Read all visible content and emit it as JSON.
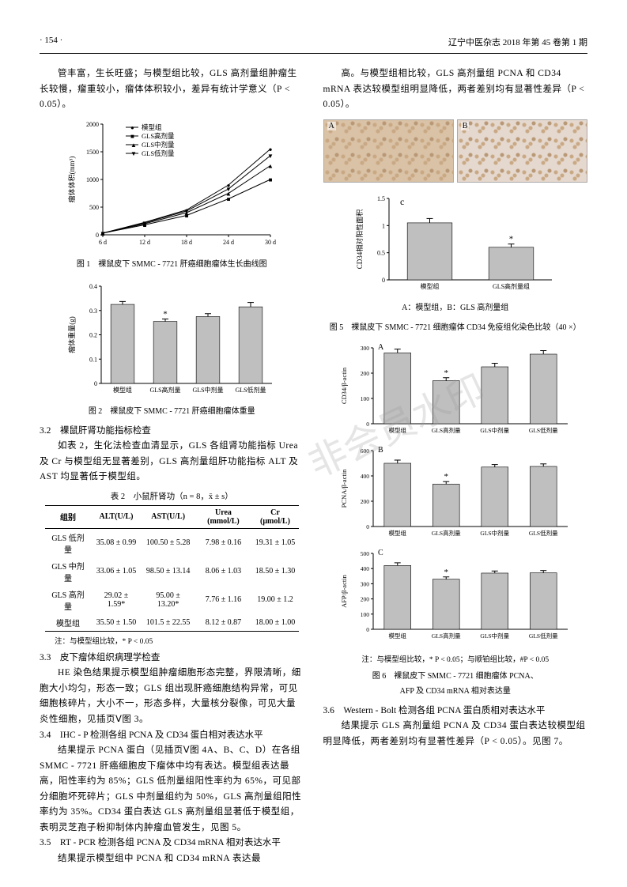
{
  "header": {
    "page_num": "· 154 ·",
    "journal": "辽宁中医杂志 2018 年第 45 卷第 1 期"
  },
  "left": {
    "intro": "管丰富，生长旺盛；与模型组比较，GLS 高剂量组肿瘤生长较慢，瘤重较小，瘤体体积较小，差异有统计学意义（P < 0.05）。",
    "fig1_caption": "图 1　裸鼠皮下 SMMC - 7721 肝癌细胞瘤体生长曲线图",
    "fig2_caption": "图 2　裸鼠皮下 SMMC - 7721 肝癌细胞瘤体重量",
    "sec32_title": "3.2　裸鼠肝肾功能指标检查",
    "sec32_body": "如表 2，生化法检查血清显示，GLS 各组肾功能指标 Urea 及 Cr 与模型组无显著差别，GLS 高剂量组肝功能指标 ALT 及 AST 均显著低于模型组。",
    "tbl2_title": "表 2　小鼠肝肾功（n = 8，x̄ ± s）",
    "tbl2": {
      "headers": [
        "组别",
        "ALT(U/L)",
        "AST(U/L)",
        "Urea (mmol/L)",
        "Cr (μmol/L)"
      ],
      "rows": [
        [
          "GLS 低剂量",
          "35.08 ± 0.99",
          "100.50 ± 5.28",
          "7.98 ± 0.16",
          "19.31 ± 1.05"
        ],
        [
          "GLS 中剂量",
          "33.06 ± 1.05",
          "98.50 ± 13.14",
          "8.06 ± 1.03",
          "18.50 ± 1.30"
        ],
        [
          "GLS 高剂量",
          "29.02 ± 1.59*",
          "95.00 ± 13.20*",
          "7.76 ± 1.16",
          "19.00 ± 1.2"
        ],
        [
          "模型组",
          "35.50 ± 1.50",
          "101.5 ± 22.55",
          "8.12 ± 0.87",
          "18.00 ± 1.00"
        ]
      ]
    },
    "tbl2_note": "注：与模型组比较，* P < 0.05",
    "sec33_title": "3.3　皮下瘤体组织病理学检查",
    "sec33_body": "HE 染色结果提示模型组肿瘤细胞形态完整，界限清晰，细胞大小均匀，形态一致；GLS 组出现肝癌细胞结构异常，可见细胞核碎片，大小不一，形态多样，大量核分裂像，可见大量炎性细胞，见插页Ⅴ图 3。",
    "sec34_title": "3.4　IHC - P 检测各组 PCNA 及 CD34 蛋白相对表达水平",
    "sec34_body": "结果提示 PCNA 蛋白（见插页Ⅴ图 4A、B、C、D）在各组 SMMC - 7721 肝癌细胞皮下瘤体中均有表达。模型组表达最高，阳性率约为 85%；GLS 低剂量组阳性率约为 65%，可见部分细胞坏死碎片；GLS 中剂量组约为 50%，GLS 高剂量组阳性率约为 35%。CD34 蛋白表达 GLS 高剂量组显著低于模型组，表明灵芝孢子粉抑制体内肿瘤血管发生，见图 5。",
    "sec35_title": "3.5　RT - PCR 检测各组 PCNA 及 CD34 mRNA 相对表达水平",
    "sec35_body": "结果提示模型组中 PCNA 和 CD34 mRNA 表达最"
  },
  "right": {
    "top": "高。与模型组相比较，GLS 高剂量组 PCNA 和 CD34 mRNA 表达较模型组明显降低，两者差别均有显著性差异（P < 0.05）。",
    "fig5_sub": "A：模型组，B：GLS 高剂量组",
    "fig5_caption": "图 5　裸鼠皮下 SMMC - 7721 细胞瘤体 CD34 免疫组化染色比较（40 ×）",
    "fig6_note": "注：与模型组比较，* P < 0.05；与顺铂组比较，#P < 0.05",
    "fig6_caption1": "图 6　裸鼠皮下 SMMC - 7721 细胞瘤体 PCNA、",
    "fig6_caption2": "AFP 及 CD34 mRNA 相对表达量",
    "sec36_title": "3.6　Western - Bolt 检测各组 PCNA 蛋白质相对表达水平",
    "sec36_body": "结果提示 GLS 高剂量组 PCNA 及 CD34 蛋白表达较模型组明显降低，两者差别均有显著性差异（P < 0.05）。见图 7。"
  },
  "fig1": {
    "type": "line",
    "x": [
      6,
      12,
      18,
      24,
      30
    ],
    "x_labels": [
      "6 d",
      "12 d",
      "18 d",
      "24 d",
      "30 d"
    ],
    "ylabel": "瘤体体积(mm³)",
    "ylim": [
      0,
      2000
    ],
    "ytick": [
      0,
      500,
      1000,
      1500,
      2000
    ],
    "series": [
      {
        "name": "模型组",
        "marker": "●",
        "color": "#000000",
        "y": [
          30,
          225,
          450,
          900,
          1550
        ]
      },
      {
        "name": "GLS高剂量",
        "marker": "■",
        "color": "#000000",
        "y": [
          30,
          180,
          350,
          650,
          1000
        ]
      },
      {
        "name": "GLS中剂量",
        "marker": "▲",
        "color": "#000000",
        "y": [
          30,
          200,
          400,
          750,
          1250
        ]
      },
      {
        "name": "GLS低剂量",
        "marker": "▼",
        "color": "#000000",
        "y": [
          30,
          215,
          430,
          830,
          1430
        ]
      }
    ],
    "bg": "#ffffff",
    "axis_color": "#000000",
    "grid": false
  },
  "fig2": {
    "type": "bar",
    "ylabel": "瘤体重量(g)",
    "ylim": [
      0,
      0.4
    ],
    "ytick": [
      0,
      0.1,
      0.2,
      0.3,
      0.4
    ],
    "categories": [
      "模型组",
      "GLS高剂量",
      "GLS中剂量",
      "GLS低剂量"
    ],
    "values": [
      0.325,
      0.255,
      0.275,
      0.315
    ],
    "errors": [
      0.012,
      0.01,
      0.012,
      0.018
    ],
    "star_idx": [
      1
    ],
    "bar_color": "#bfbfbf",
    "edge": "#000000",
    "bg": "#ffffff"
  },
  "fig5c": {
    "type": "bar",
    "ylabel": "CD34相对阳性面积",
    "ylim": [
      0,
      1.5
    ],
    "ytick": [
      0,
      0.5,
      1.0,
      1.5
    ],
    "categories": [
      "模型组",
      "GLS高剂量组"
    ],
    "values": [
      1.05,
      0.6
    ],
    "errors": [
      0.08,
      0.06
    ],
    "star_idx": [
      1
    ],
    "bar_color": "#bfbfbf",
    "edge": "#000000",
    "panel_label": "c"
  },
  "fig6": {
    "type": "bar_panels",
    "categories": [
      "模型组",
      "GLS高剂量",
      "GLS中剂量",
      "GLS低剂量"
    ],
    "panels": [
      {
        "label": "A",
        "ylabel": "CD34/β-actin",
        "ylim": [
          0,
          300
        ],
        "ytick": [
          0,
          100,
          200,
          300
        ],
        "values": [
          280,
          170,
          225,
          275
        ],
        "errors": [
          15,
          12,
          14,
          14
        ],
        "star_idx": [
          1
        ]
      },
      {
        "label": "B",
        "ylabel": "PCNA/β-actin",
        "ylim": [
          0,
          600
        ],
        "ytick": [
          0,
          200,
          400,
          600
        ],
        "values": [
          500,
          335,
          470,
          475
        ],
        "errors": [
          25,
          20,
          20,
          20
        ],
        "star_idx": [
          1
        ]
      },
      {
        "label": "C",
        "ylabel": "AFP/β-actin",
        "ylim": [
          0,
          500
        ],
        "ytick": [
          0,
          100,
          200,
          300,
          400,
          500
        ],
        "values": [
          420,
          330,
          370,
          372
        ],
        "errors": [
          18,
          15,
          14,
          15
        ],
        "star_idx": [
          1
        ]
      }
    ],
    "bar_color": "#bfbfbf",
    "edge": "#000000"
  },
  "watermark_text": "非会员水印"
}
